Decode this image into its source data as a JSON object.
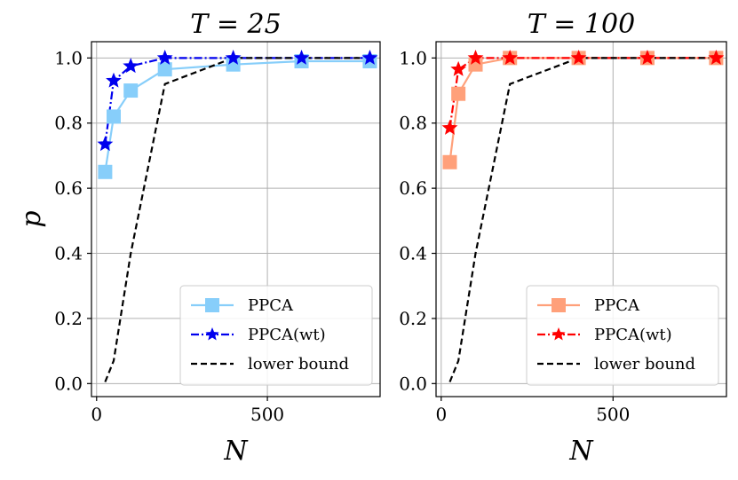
{
  "chart_data": [
    {
      "type": "line",
      "title": "T = 25",
      "xlabel": "N",
      "ylabel": "p",
      "xlim": [
        -15,
        830
      ],
      "ylim": [
        -0.04,
        1.05
      ],
      "xticks": [
        0,
        500
      ],
      "xtick_labels": [
        "0",
        "500"
      ],
      "yticks": [
        0.0,
        0.2,
        0.4,
        0.6,
        0.8,
        1.0
      ],
      "ytick_labels": [
        "0.0",
        "0.2",
        "0.4",
        "0.6",
        "0.8",
        "1.0"
      ],
      "grid": true,
      "legend_position": "lower-right",
      "series": [
        {
          "name": "PPCA",
          "color": "#87cefa",
          "marker": "square",
          "linestyle": "solid",
          "x": [
            25,
            50,
            100,
            200,
            400,
            600,
            800
          ],
          "y": [
            0.65,
            0.82,
            0.9,
            0.965,
            0.98,
            0.99,
            0.99
          ]
        },
        {
          "name": "PPCA(wt)",
          "color": "#0000ee",
          "marker": "star",
          "linestyle": "dashdot",
          "x": [
            25,
            50,
            100,
            200,
            400,
            600,
            800
          ],
          "y": [
            0.735,
            0.93,
            0.975,
            1.0,
            1.0,
            1.0,
            1.0
          ]
        },
        {
          "name": "lower bound",
          "color": "#000000",
          "marker": "none",
          "linestyle": "dashed",
          "x": [
            25,
            50,
            100,
            200,
            400,
            600,
            800
          ],
          "y": [
            0.005,
            0.07,
            0.4,
            0.92,
            1.0,
            1.0,
            1.0
          ]
        }
      ]
    },
    {
      "type": "line",
      "title": "T = 100",
      "xlabel": "N",
      "ylabel": "",
      "xlim": [
        -15,
        830
      ],
      "ylim": [
        -0.04,
        1.05
      ],
      "xticks": [
        0,
        500
      ],
      "xtick_labels": [
        "0",
        "500"
      ],
      "yticks": [
        0.0,
        0.2,
        0.4,
        0.6,
        0.8,
        1.0
      ],
      "ytick_labels": [
        "0.0",
        "0.2",
        "0.4",
        "0.6",
        "0.8",
        "1.0"
      ],
      "grid": true,
      "legend_position": "lower-right",
      "series": [
        {
          "name": "PPCA",
          "color": "#ffa07a",
          "marker": "square",
          "linestyle": "solid",
          "x": [
            25,
            50,
            100,
            200,
            400,
            600,
            800
          ],
          "y": [
            0.68,
            0.89,
            0.98,
            1.0,
            1.0,
            1.0,
            1.0
          ]
        },
        {
          "name": "PPCA(wt)",
          "color": "#ff0000",
          "marker": "star",
          "linestyle": "dashdot",
          "x": [
            25,
            50,
            100,
            200,
            400,
            600,
            800
          ],
          "y": [
            0.785,
            0.965,
            1.0,
            1.0,
            1.0,
            1.0,
            1.0
          ]
        },
        {
          "name": "lower bound",
          "color": "#000000",
          "marker": "none",
          "linestyle": "dashed",
          "x": [
            25,
            50,
            100,
            200,
            400,
            600,
            800
          ],
          "y": [
            0.005,
            0.07,
            0.4,
            0.92,
            1.0,
            1.0,
            1.0
          ]
        }
      ]
    }
  ]
}
